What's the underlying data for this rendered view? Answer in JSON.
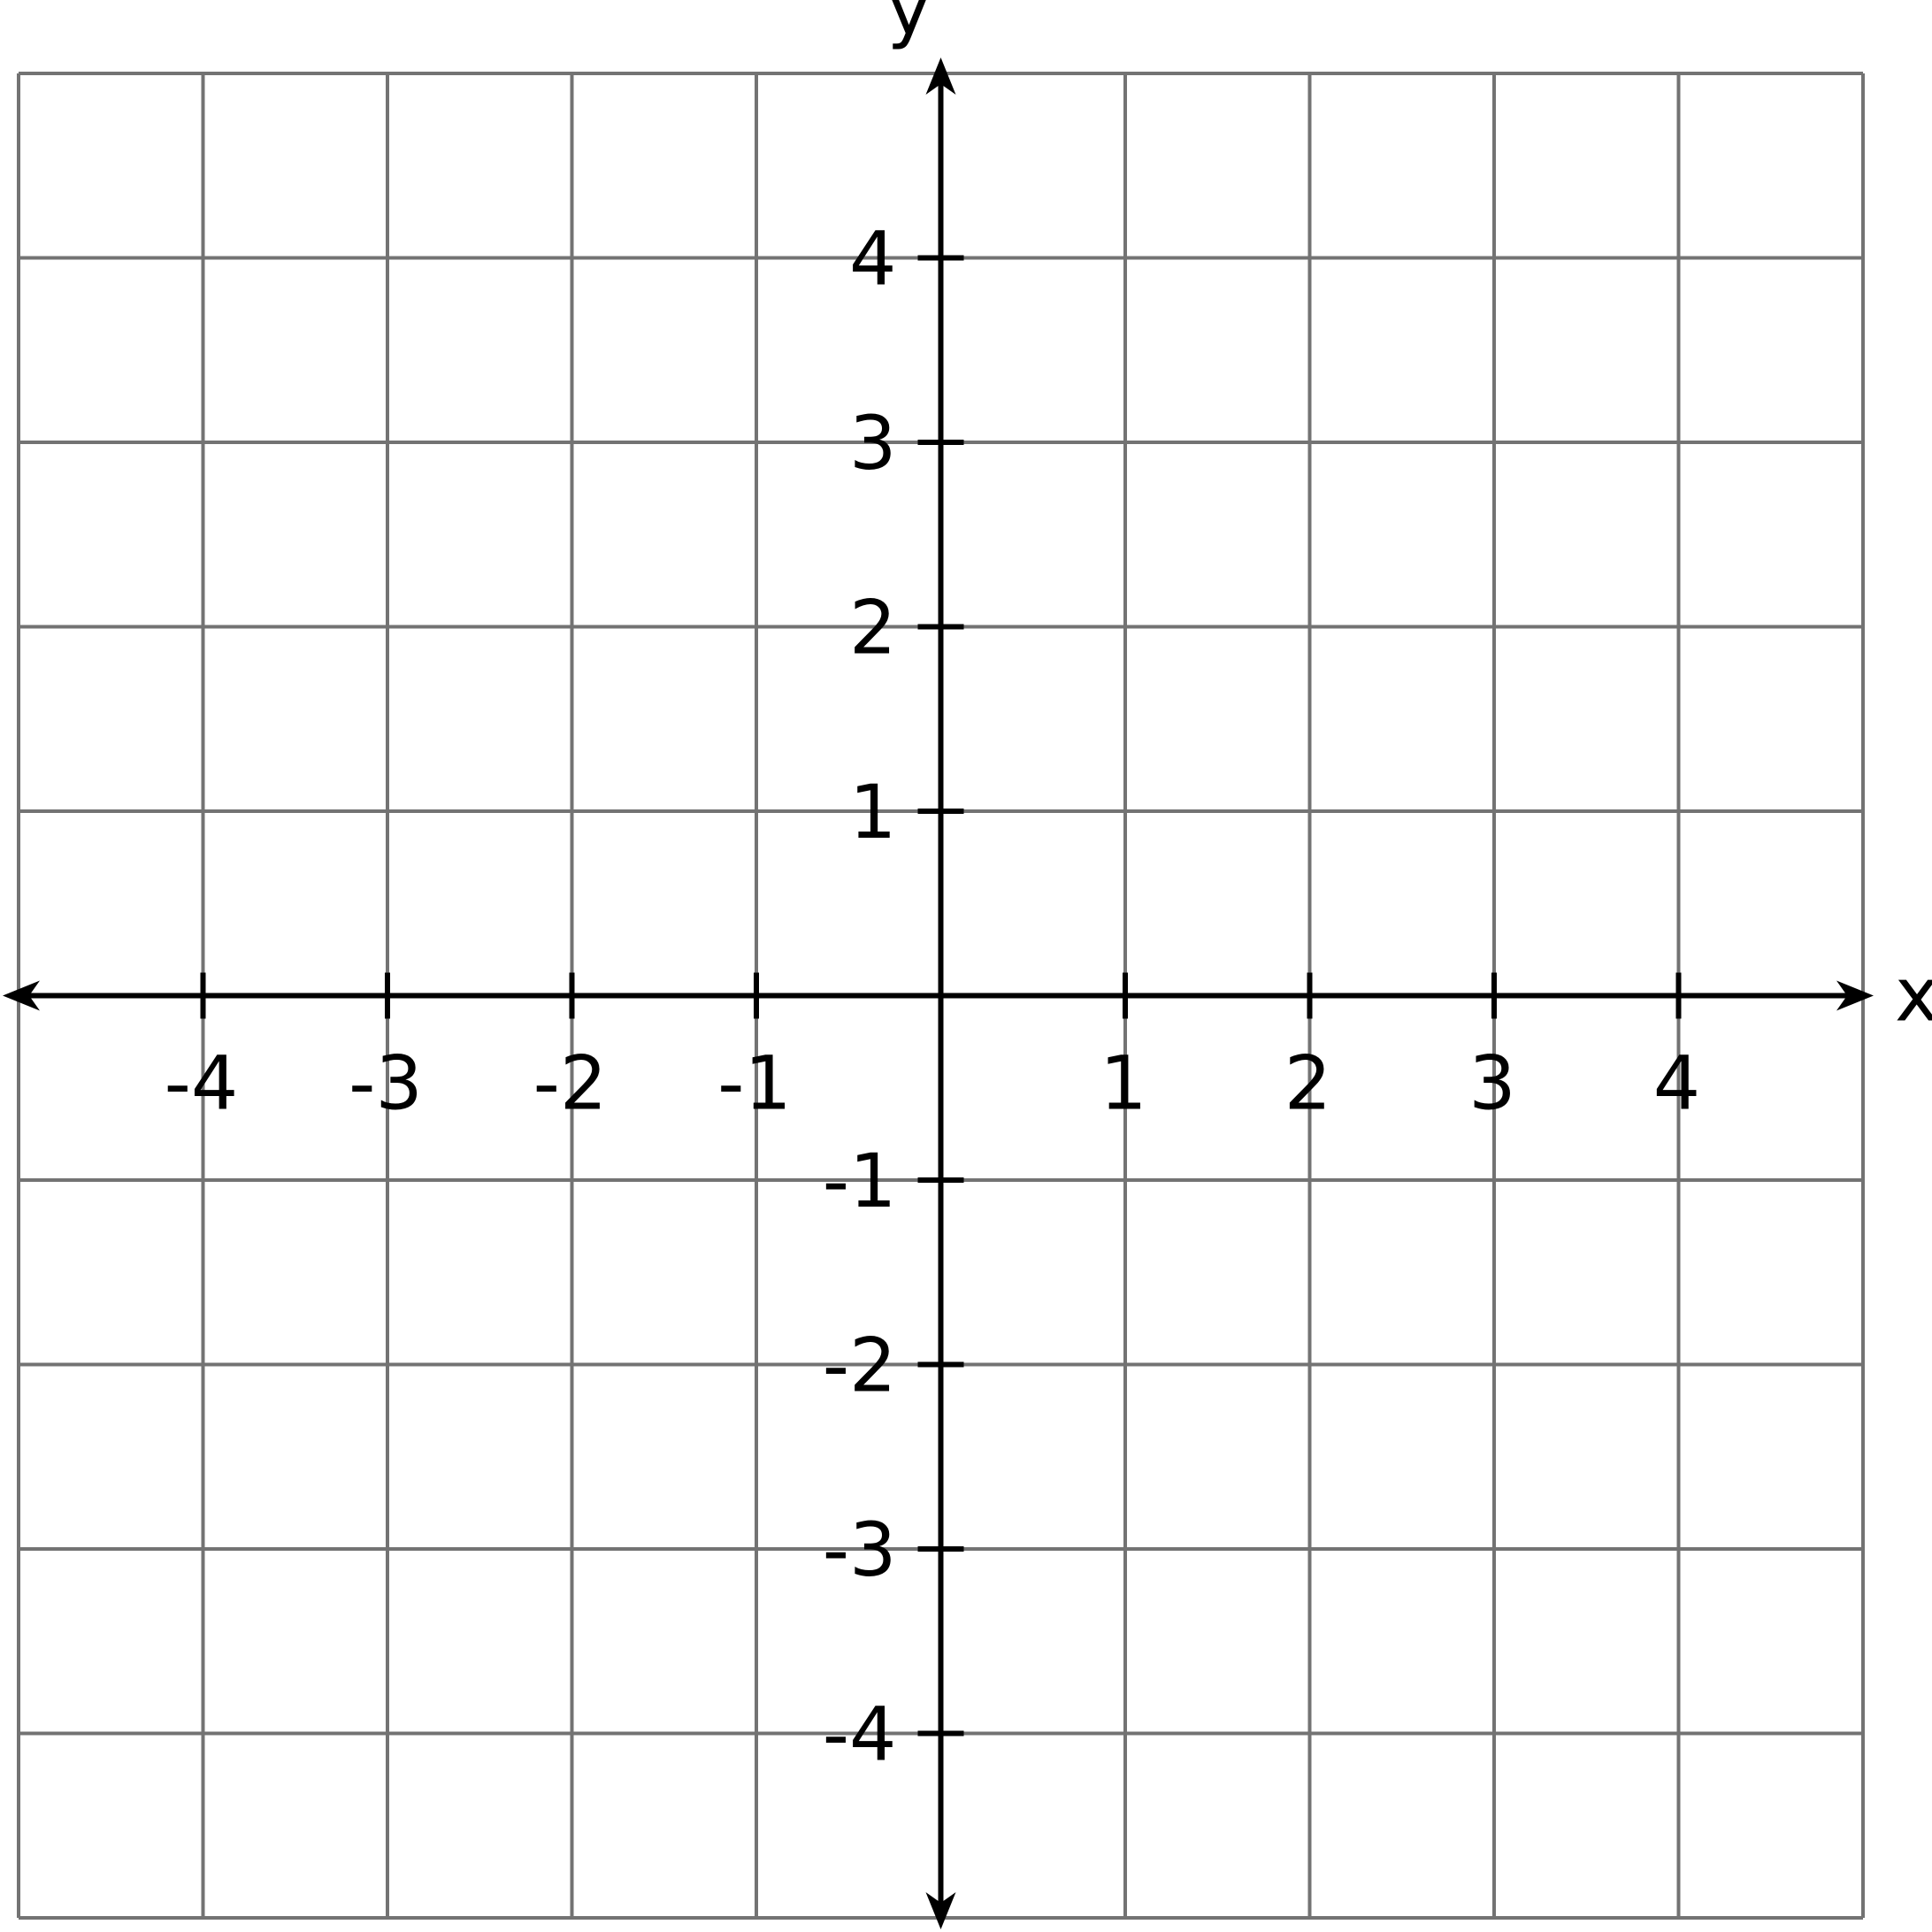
{
  "chart_data": {
    "type": "scatter",
    "title": "",
    "xlabel": "x",
    "ylabel": "y",
    "xlim": [
      -5,
      5
    ],
    "ylim": [
      -5,
      5
    ],
    "grid": true,
    "grid_step": 1,
    "x_ticks": [
      -4,
      -3,
      -2,
      -1,
      1,
      2,
      3,
      4
    ],
    "y_ticks": [
      -4,
      -3,
      -2,
      -1,
      1,
      2,
      3,
      4
    ],
    "x_tick_labels": [
      "-4",
      "-3",
      "-2",
      "-1",
      "1",
      "2",
      "3",
      "4"
    ],
    "y_tick_labels": [
      "-4",
      "-3",
      "-2",
      "-1",
      "1",
      "2",
      "3",
      "4"
    ],
    "series": [],
    "colors": {
      "grid": "#737373",
      "axis": "#000000",
      "background": "#ffffff"
    }
  }
}
